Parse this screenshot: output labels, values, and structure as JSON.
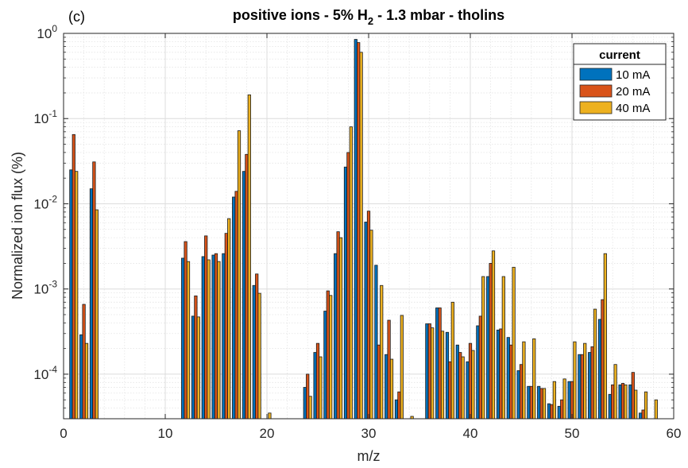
{
  "panel_label": "(c)",
  "title_parts": {
    "pre": "positive ions  -  5% H",
    "sub": "2",
    "post": "  -  1.3 mbar  -  tholins"
  },
  "x_tick_labels": [
    "0",
    "10",
    "20",
    "30",
    "40",
    "50",
    "60"
  ],
  "y_tick_labels": [
    {
      "base": "10",
      "exp": "-4"
    },
    {
      "base": "10",
      "exp": "-3"
    },
    {
      "base": "10",
      "exp": "-2"
    },
    {
      "base": "10",
      "exp": "-1"
    },
    {
      "base": "10",
      "exp": "0"
    }
  ],
  "chart_data": {
    "type": "bar",
    "title": "positive ions - 5% H2 - 1.3 mbar - tholins",
    "xlabel": "m/z",
    "ylabel": "Normalized ion flux (%)",
    "xlim": [
      0,
      60
    ],
    "ylim": [
      3e-05,
      1
    ],
    "yscale": "log",
    "grid": true,
    "minor_grid": true,
    "legend_title": "current",
    "legend_position": "top-right",
    "x": [
      1,
      2,
      3,
      12,
      13,
      14,
      15,
      16,
      17,
      18,
      19,
      20,
      21,
      24,
      25,
      26,
      27,
      28,
      29,
      30,
      31,
      32,
      33,
      34,
      36,
      37,
      38,
      39,
      40,
      41,
      42,
      43,
      44,
      45,
      46,
      47,
      48,
      49,
      50,
      51,
      52,
      53,
      54,
      55,
      56,
      57,
      58,
      60
    ],
    "series": [
      {
        "name": "10 mA",
        "color": "#0072BD",
        "values": [
          0.025,
          0.00029,
          0.015,
          0.0023,
          0.00048,
          0.0024,
          0.0025,
          0.0026,
          0.012,
          0.024,
          0.0011,
          null,
          null,
          7e-05,
          0.00018,
          0.00055,
          0.0026,
          0.027,
          0.85,
          0.0061,
          0.0019,
          0.00017,
          5e-05,
          null,
          0.00039,
          0.0006,
          0.00031,
          0.00022,
          0.00014,
          0.00037,
          0.0014,
          0.00033,
          0.00027,
          0.00011,
          7.2e-05,
          7.2e-05,
          4.5e-05,
          4.2e-05,
          8.2e-05,
          0.00017,
          0.00018,
          0.00044,
          5.8e-05,
          7.5e-05,
          7.5e-05,
          3.5e-05,
          null,
          null
        ]
      },
      {
        "name": "20 mA",
        "color": "#D95319",
        "values": [
          0.065,
          0.00066,
          0.031,
          0.0036,
          0.00083,
          0.0042,
          0.0026,
          0.0045,
          0.014,
          0.038,
          0.0015,
          null,
          null,
          0.0001,
          0.00023,
          0.00095,
          0.0047,
          0.04,
          0.78,
          0.0082,
          0.00022,
          0.00043,
          6.2e-05,
          null,
          0.00039,
          0.0006,
          0.00014,
          0.00018,
          0.00023,
          0.00048,
          0.002,
          0.00034,
          0.00022,
          0.00013,
          7.2e-05,
          6.8e-05,
          4.4e-05,
          5e-05,
          8.2e-05,
          0.00017,
          0.00021,
          0.00075,
          7.5e-05,
          7.8e-05,
          0.000105,
          3.8e-05,
          null,
          null
        ]
      },
      {
        "name": "40 mA",
        "color": "#EDB120",
        "values": [
          0.024,
          0.00023,
          0.0085,
          0.0021,
          0.00047,
          0.0022,
          0.0021,
          0.0067,
          0.072,
          0.19,
          0.00089,
          3.5e-05,
          null,
          5.5e-05,
          0.00016,
          0.00084,
          0.004,
          0.08,
          0.6,
          0.0049,
          0.0011,
          0.00015,
          0.00049,
          3.2e-05,
          0.00035,
          0.00032,
          0.0007,
          0.00016,
          0.00019,
          0.0014,
          0.0028,
          0.0014,
          0.0018,
          0.00024,
          0.00026,
          6.8e-05,
          8.2e-05,
          8.8e-05,
          0.00024,
          0.00023,
          0.00058,
          0.0026,
          0.00013,
          7.5e-05,
          6.5e-05,
          6.2e-05,
          5e-05,
          6.2e-05
        ]
      }
    ]
  }
}
